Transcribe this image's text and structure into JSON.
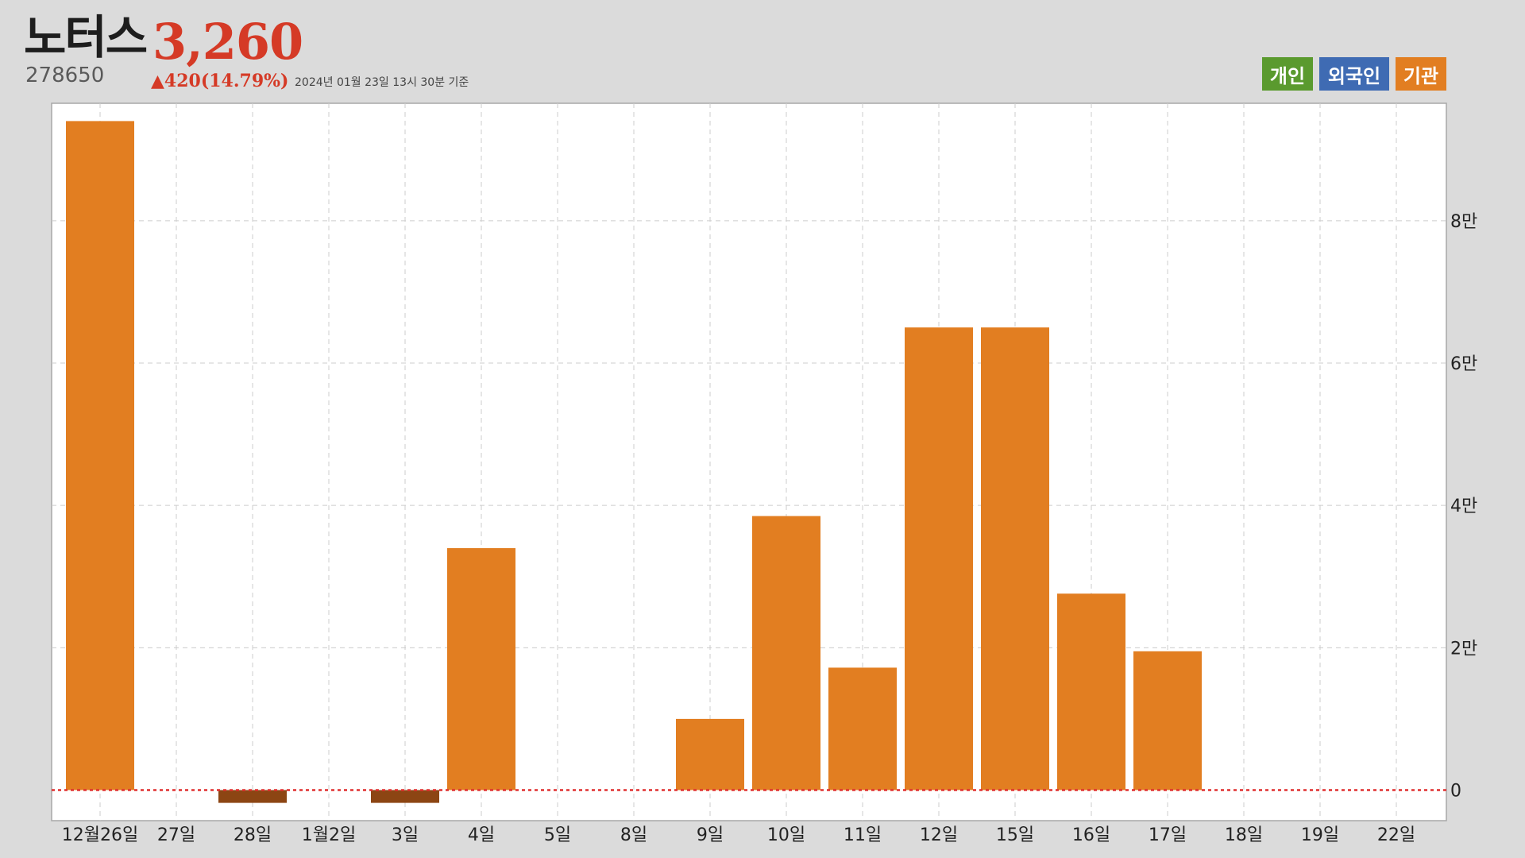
{
  "header": {
    "name": "노터스",
    "code": "278650",
    "price": "3,260",
    "change": "▲420(14.79%)",
    "timestamp": "2024년 01월 23일 13시 30분 기준"
  },
  "legend": [
    {
      "label": "개인",
      "color": "#5a9a2e"
    },
    {
      "label": "외국인",
      "color": "#3f6bb3"
    },
    {
      "label": "기관",
      "color": "#e27e21"
    }
  ],
  "colors": {
    "positive": "#e27e21",
    "negative": "#8c4513",
    "zero_line": "#e03030"
  },
  "chart_data": {
    "type": "bar",
    "categories": [
      "12월26일",
      "27일",
      "28일",
      "1월2일",
      "3일",
      "4일",
      "5일",
      "8일",
      "9일",
      "10일",
      "11일",
      "12일",
      "15일",
      "16일",
      "17일",
      "18일",
      "19일",
      "22일"
    ],
    "series": [
      {
        "name": "기관",
        "values": [
          94000,
          null,
          -1800,
          null,
          -1800,
          34000,
          null,
          null,
          10000,
          38500,
          17200,
          65000,
          65000,
          27600,
          19500,
          null,
          null,
          null
        ]
      }
    ],
    "yticks": [
      {
        "value": 0,
        "label": "0"
      },
      {
        "value": 20000,
        "label": "2만"
      },
      {
        "value": 40000,
        "label": "4만"
      },
      {
        "value": 60000,
        "label": "6만"
      },
      {
        "value": 80000,
        "label": "8만"
      }
    ],
    "ylim": [
      -4300,
      96500
    ],
    "grid": true,
    "legend_position": "top-right"
  }
}
